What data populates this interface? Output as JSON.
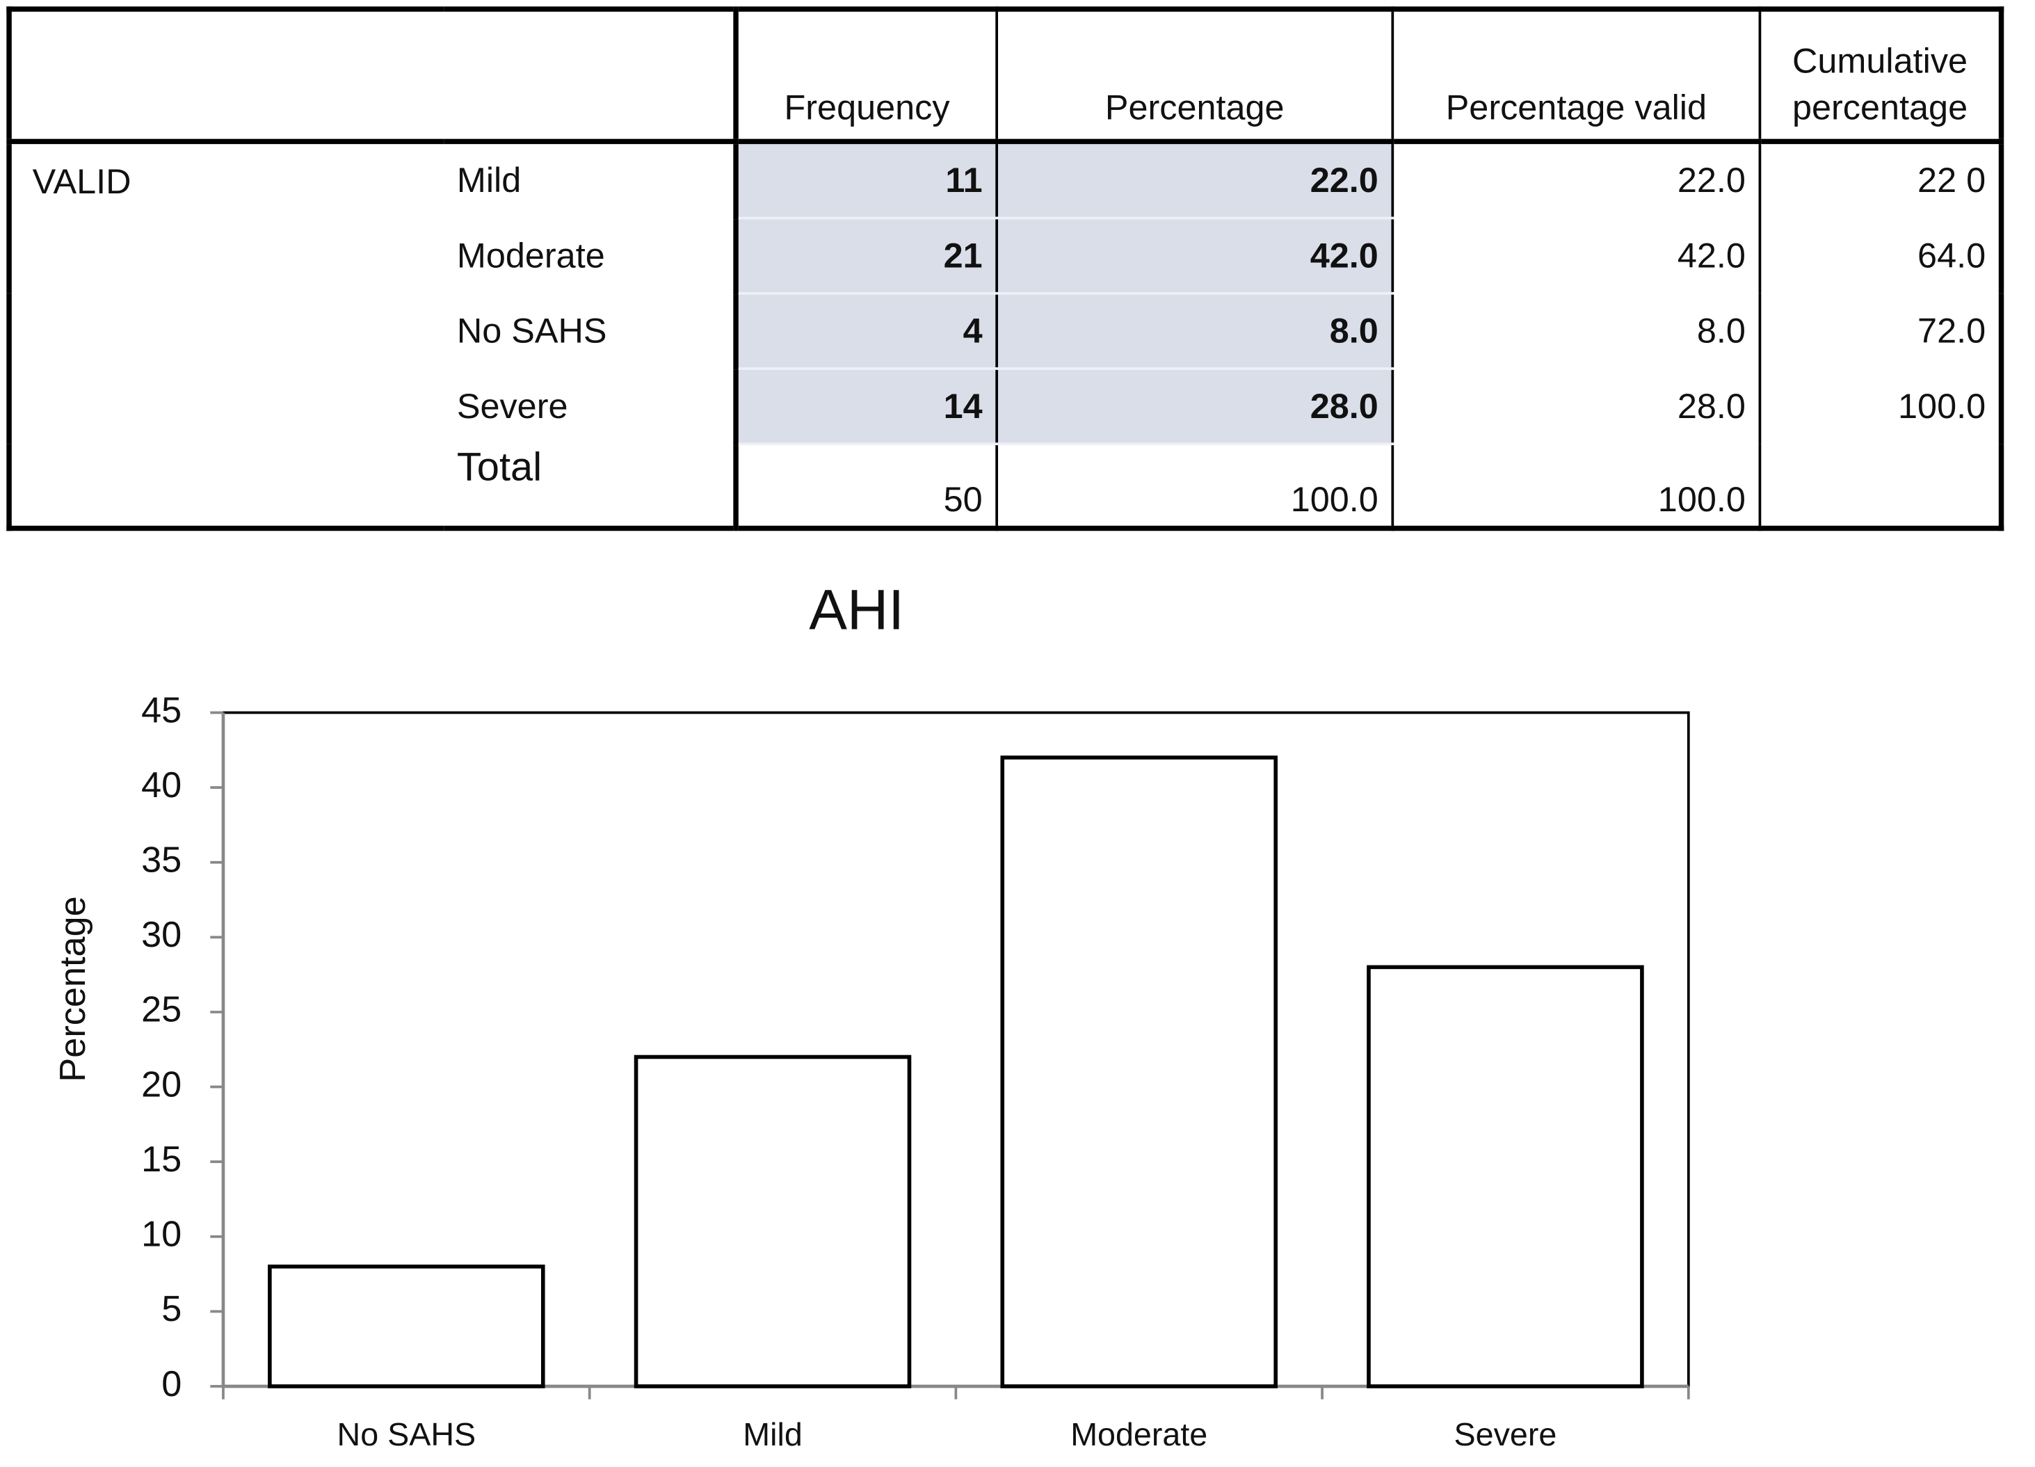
{
  "table": {
    "headers": [
      "Frequency",
      "Percentage",
      "Percentage valid",
      "Cumulative percentage"
    ],
    "group": "VALID",
    "rows": [
      {
        "label": "Mild",
        "cells": [
          "11",
          "22.0",
          "22.0",
          "22 0"
        ]
      },
      {
        "label": "Moderate",
        "cells": [
          "21",
          "42.0",
          "42.0",
          "64.0"
        ]
      },
      {
        "label": "No SAHS",
        "cells": [
          "4",
          "8.0",
          "8.0",
          "72.0"
        ]
      },
      {
        "label": "Severe",
        "cells": [
          "14",
          "28.0",
          "28.0",
          "100.0"
        ]
      },
      {
        "label": "Total",
        "cells": [
          "50",
          "100.0",
          "100.0"
        ]
      }
    ]
  },
  "chart_data": {
    "type": "bar",
    "title": "AHI",
    "y_label": "Percentage",
    "categories": [
      "No SAHS",
      "Mild",
      "Moderate",
      "Severe"
    ],
    "values": [
      8,
      22,
      42,
      28
    ],
    "color": "#ffffff",
    "ylim": [
      0,
      45
    ],
    "yticks": [
      0,
      5,
      10,
      15,
      20,
      25,
      30,
      35,
      40,
      45
    ],
    "grid": false
  }
}
